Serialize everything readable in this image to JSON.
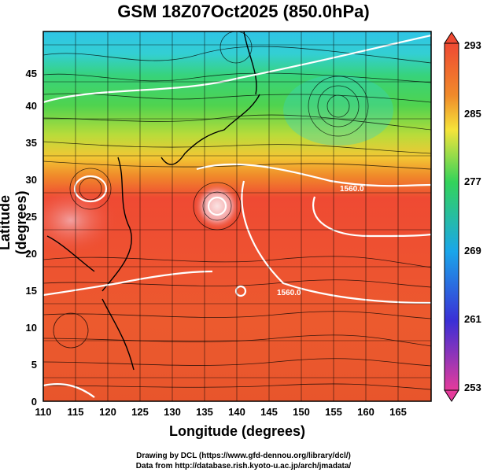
{
  "title": "GSM 18Z07Oct2025 (850.0hPa)",
  "axes": {
    "xlabel": "Longitude (degrees)",
    "ylabel": "Latitude  (degrees)",
    "xticks": [
      "110",
      "115",
      "120",
      "125",
      "130",
      "135",
      "140",
      "145",
      "150",
      "155",
      "160",
      "165"
    ],
    "yticks": [
      "0",
      "5",
      "10",
      "15",
      "20",
      "25",
      "30",
      "35",
      "40",
      "45"
    ],
    "xlim": [
      110,
      170
    ],
    "ylim": [
      0,
      50
    ]
  },
  "colorbar": {
    "labels": [
      "293",
      "285",
      "277",
      "269",
      "261",
      "253"
    ],
    "range": [
      253,
      293
    ],
    "colors": [
      "#e53b9b",
      "#3a2fd6",
      "#1aa6ea",
      "#33d35a",
      "#f5e43a",
      "#f08a2a",
      "#ef4a33"
    ]
  },
  "contour_labels": [
    "1560.0",
    "1560.0"
  ],
  "credits": {
    "line1": "Drawing by DCL (https://www.gfd-dennou.org/library/dcl/)",
    "line2": "Data from http://database.rish.kyoto-u.ac.jp/arch/jmadata/"
  }
}
